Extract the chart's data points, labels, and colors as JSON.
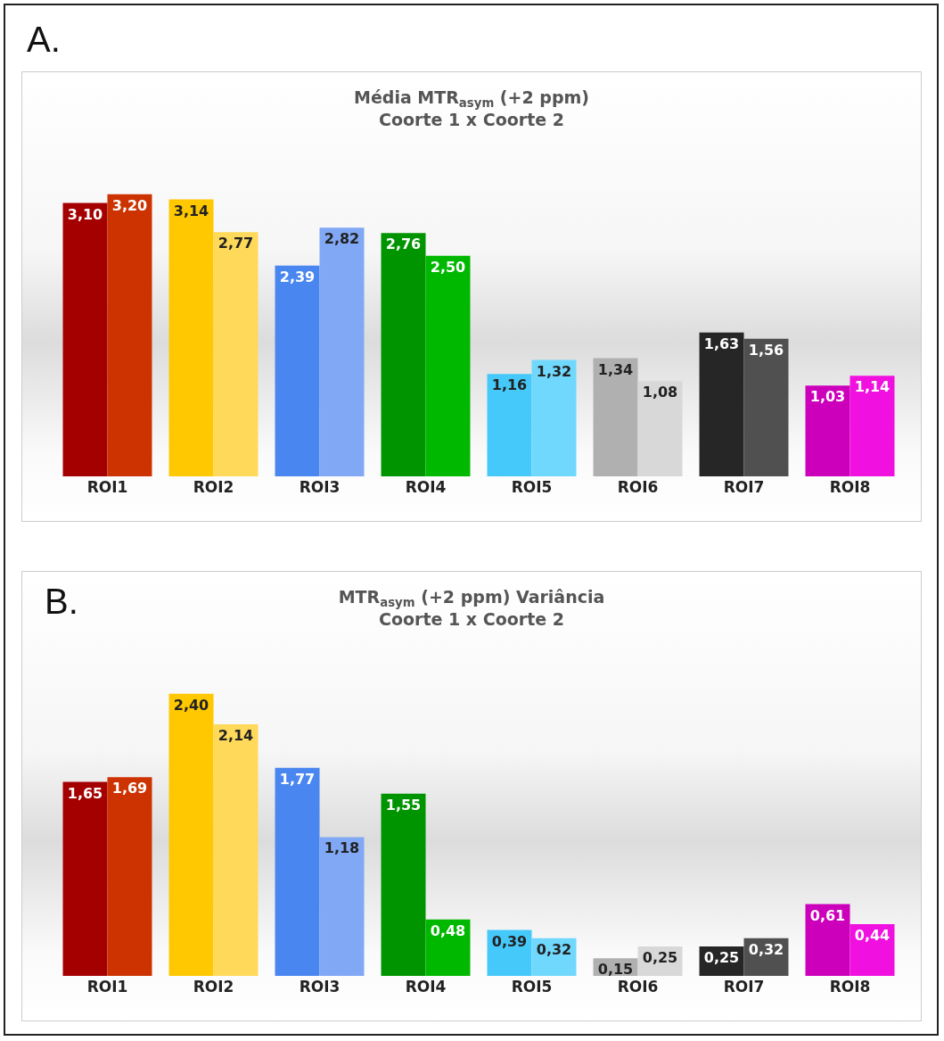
{
  "chart_data": [
    {
      "type": "bar",
      "title": "Média MTR$_{asym}$ (+2 ppm)",
      "subtitle": "Coorte 1 x Coorte 2",
      "annotations": [
        "A."
      ],
      "categories": [
        "ROI1",
        "ROI2",
        "ROI3",
        "ROI4",
        "ROI5",
        "ROI6",
        "ROI7",
        "ROI8"
      ],
      "series": [
        {
          "values": [
            3.1,
            3.14,
            2.39,
            2.76,
            1.16,
            1.34,
            1.63,
            1.03
          ],
          "value_labels": [
            "3,10",
            "3,14",
            "2,39",
            "2,76",
            "1,16",
            "1,34",
            "1,63",
            "1,03"
          ],
          "colors": [
            "#a50000",
            "#ffc800",
            "#4a86f0",
            "#009400",
            "#45c8fa",
            "#b0b0b0",
            "#262626",
            "#cc00bb"
          ]
        },
        {
          "values": [
            3.2,
            2.77,
            2.82,
            2.5,
            1.32,
            1.08,
            1.56,
            1.14
          ],
          "value_labels": [
            "3,20",
            "2,77",
            "2,82",
            "2,50",
            "1,32",
            "1,08",
            "1,56",
            "1,14"
          ],
          "colors": [
            "#cc3300",
            "#ffd95a",
            "#80a8f5",
            "#00b800",
            "#70d8fc",
            "#d8d8d8",
            "#505050",
            "#f010e0"
          ]
        }
      ]
    },
    {
      "type": "bar",
      "title": "MTR$_{asym}$ (+2 ppm) Variância",
      "subtitle": "Coorte 1 x Coorte 2",
      "annotations": [
        "B."
      ],
      "categories": [
        "ROI1",
        "ROI2",
        "ROI3",
        "ROI4",
        "ROI5",
        "ROI6",
        "ROI7",
        "ROI8"
      ],
      "series": [
        {
          "values": [
            1.65,
            2.4,
            1.77,
            1.55,
            0.39,
            0.15,
            0.25,
            0.61
          ],
          "value_labels": [
            "1,65",
            "2,40",
            "1,77",
            "1,55",
            "0,39",
            "0,15",
            "0,25",
            "0,61"
          ],
          "colors": [
            "#a50000",
            "#ffc800",
            "#4a86f0",
            "#009400",
            "#45c8fa",
            "#b0b0b0",
            "#262626",
            "#cc00bb"
          ]
        },
        {
          "values": [
            1.69,
            2.14,
            1.18,
            0.48,
            0.32,
            0.25,
            0.32,
            0.44
          ],
          "value_labels": [
            "1,69",
            "2,14",
            "1,18",
            "0,48",
            "0,32",
            "0,25",
            "0,32",
            "0,44"
          ],
          "colors": [
            "#cc3300",
            "#ffd95a",
            "#80a8f5",
            "#00b800",
            "#70d8fc",
            "#d8d8d8",
            "#505050",
            "#f010e0"
          ]
        }
      ]
    }
  ]
}
